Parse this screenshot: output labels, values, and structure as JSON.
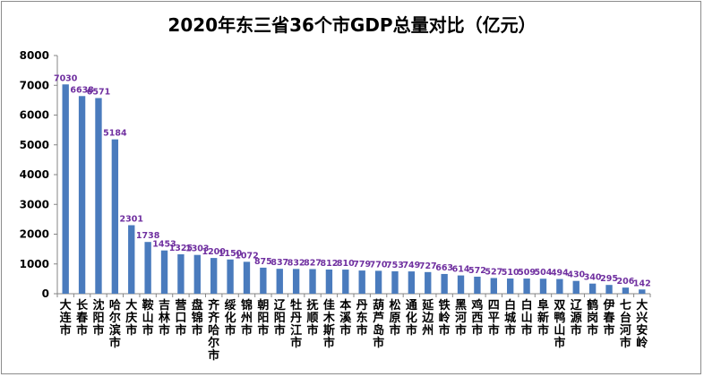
{
  "chart_data": {
    "type": "bar",
    "title": "2020年东三省36个市GDP总量对比（亿元）",
    "xlabel": "",
    "ylabel": "",
    "ylim": [
      0,
      8000
    ],
    "yticks": [
      0,
      1000,
      2000,
      3000,
      4000,
      5000,
      6000,
      7000,
      8000
    ],
    "grid": false,
    "legend": "none",
    "bar_color": "#4a7bbd",
    "label_color": "#7030a0",
    "categories": [
      "大连市",
      "长春市",
      "沈阳市",
      "哈尔滨市",
      "大庆市",
      "鞍山市",
      "吉林市",
      "营口市",
      "盘锦市",
      "齐齐哈尔市",
      "绥化市",
      "锦州市",
      "朝阳市",
      "辽阳市",
      "牡丹江市",
      "抚顺市",
      "佳木斯市",
      "本溪市",
      "丹东市",
      "葫芦岛市",
      "松原市",
      "通化市",
      "延边州",
      "铁岭市",
      "黑河市",
      "鸡西市",
      "四平市",
      "白城市",
      "白山市",
      "阜新市",
      "双鸭山市",
      "辽源市",
      "鹤岗市",
      "伊春市",
      "七台河市",
      "大兴安岭"
    ],
    "values": [
      7030,
      6638,
      6571,
      5184,
      2301,
      1738,
      1453,
      1325,
      1303,
      1200,
      1150,
      1072,
      875,
      837,
      832,
      827,
      812,
      810,
      779,
      770,
      753,
      749,
      727,
      663,
      614,
      572,
      527,
      510,
      509,
      504,
      494,
      430,
      340,
      295,
      206,
      142
    ],
    "data_labels": [
      "7030",
      "6638",
      "6571",
      "5184",
      "2301",
      "1738",
      "1453",
      "1325",
      "1303",
      "1200",
      "1150",
      "1072",
      "875",
      "837",
      "832",
      "827",
      "812",
      "810",
      "779",
      "770",
      "753",
      "749",
      "727",
      "663",
      "614",
      "572",
      "527",
      "510",
      "509",
      "504",
      "494",
      "430",
      "340",
      "295",
      "206",
      "142"
    ]
  }
}
